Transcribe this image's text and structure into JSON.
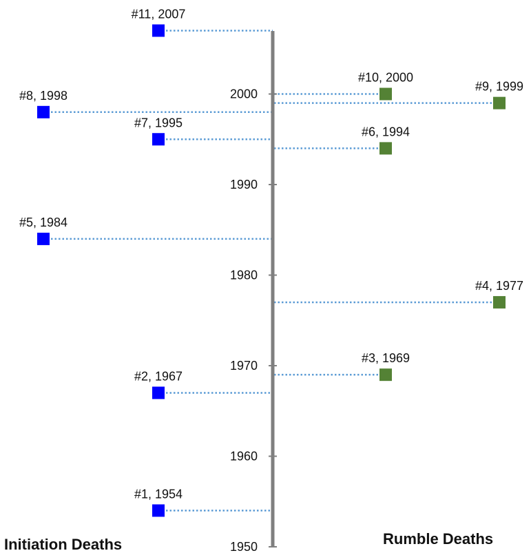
{
  "chart_data": {
    "type": "scatter",
    "title": "",
    "ylim": [
      1950,
      2007
    ],
    "y_ticks": [
      1950,
      1960,
      1970,
      1980,
      1990,
      2000
    ],
    "legend": "none",
    "grid": false,
    "colors": {
      "axis": "#7f7f7f",
      "connector": "#5b9bd5",
      "initiation": "#0000ff",
      "rumble": "#548235"
    },
    "side_labels": {
      "left": "Initiation Deaths",
      "right": "Rumble Deaths"
    },
    "events": [
      {
        "label": "#1, 1954",
        "year": 1954,
        "side": "left",
        "offset": 1
      },
      {
        "label": "#2, 1967",
        "year": 1967,
        "side": "left",
        "offset": 1
      },
      {
        "label": "#3, 1969",
        "year": 1969,
        "side": "right",
        "offset": 1
      },
      {
        "label": "#4, 1977",
        "year": 1977,
        "side": "right",
        "offset": 2
      },
      {
        "label": "#5, 1984",
        "year": 1984,
        "side": "left",
        "offset": 2
      },
      {
        "label": "#6, 1994",
        "year": 1994,
        "side": "right",
        "offset": 1
      },
      {
        "label": "#7, 1995",
        "year": 1995,
        "side": "left",
        "offset": 1
      },
      {
        "label": "#8, 1998",
        "year": 1998,
        "side": "left",
        "offset": 2
      },
      {
        "label": "#9, 1999",
        "year": 1999,
        "side": "right",
        "offset": 2
      },
      {
        "label": "#10, 2000",
        "year": 2000,
        "side": "right",
        "offset": 1
      },
      {
        "label": "#11, 2007",
        "year": 2007,
        "side": "left",
        "offset": 1
      }
    ]
  }
}
